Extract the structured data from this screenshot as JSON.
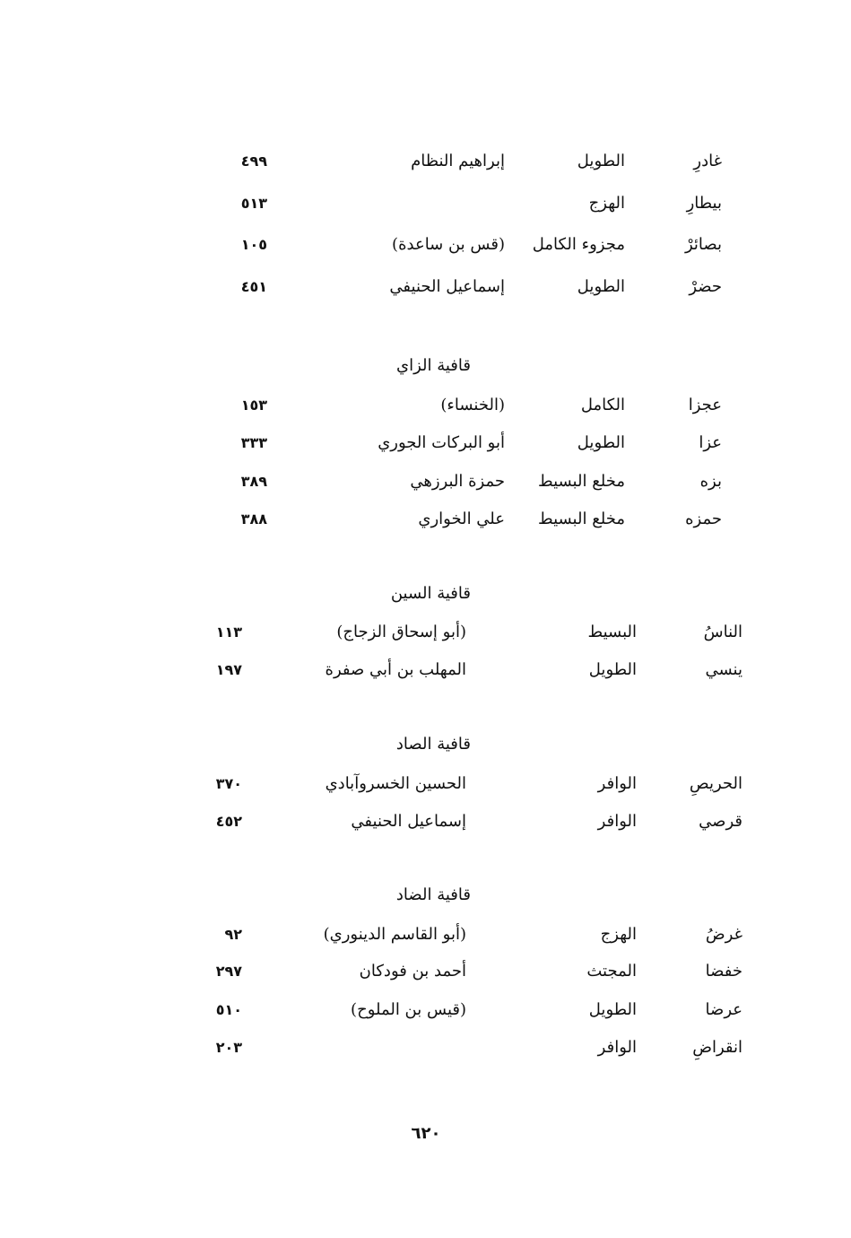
{
  "sections": [
    {
      "heading": "",
      "rows": [
        {
          "rhyme_word": "غادرِ",
          "meter": "الطويل",
          "poet": "إبراهيم النظام",
          "page": "٤٩٩"
        },
        {
          "rhyme_word": "بيطارِ",
          "meter": "الهزج",
          "poet": "",
          "page": "٥١٣"
        },
        {
          "rhyme_word": "بصائرْ",
          "meter": "مجزوء الكامل",
          "poet": "(قس بن ساعدة)",
          "page": "١٠٥"
        },
        {
          "rhyme_word": "حضرْ",
          "meter": "الطويل",
          "poet": "إسماعيل الحنيفي",
          "page": "٤٥١"
        }
      ]
    },
    {
      "heading": "قافية الزاي",
      "rows": [
        {
          "rhyme_word": "عجزا",
          "meter": "الكامل",
          "poet": "(الخنساء)",
          "page": "١٥٣"
        },
        {
          "rhyme_word": "عزا",
          "meter": "الطويل",
          "poet": "أبو البركات الجوري",
          "page": "٣٣٣"
        },
        {
          "rhyme_word": "بزه",
          "meter": "مخلع البسيط",
          "poet": "حمزة البرزهي",
          "page": "٣٨٩"
        },
        {
          "rhyme_word": "حمزه",
          "meter": "مخلع البسيط",
          "poet": "علي الخواري",
          "page": "٣٨٨"
        }
      ]
    },
    {
      "heading": "قافية السين",
      "rows": [
        {
          "rhyme_word": "الناسُ",
          "meter": "البسيط",
          "poet": "(أبو إسحاق الزجاج)",
          "page": "١١٣"
        },
        {
          "rhyme_word": "ينسي",
          "meter": "الطويل",
          "poet": "المهلب بن أبي صفرة",
          "page": "١٩٧"
        }
      ]
    },
    {
      "heading": "قافية الصاد",
      "rows": [
        {
          "rhyme_word": "الحريصِ",
          "meter": "الوافر",
          "poet": "الحسين الخسروآبادي",
          "page": "٣٧٠"
        },
        {
          "rhyme_word": "قرصي",
          "meter": "الوافر",
          "poet": "إسماعيل الحنيفي",
          "page": "٤٥٢"
        }
      ]
    },
    {
      "heading": "قافية الضاد",
      "rows": [
        {
          "rhyme_word": "غرضُ",
          "meter": "الهزج",
          "poet": "(أبو القاسم الدينوري)",
          "page": "٩٢"
        },
        {
          "rhyme_word": "خفضا",
          "meter": "المجتث",
          "poet": "أحمد بن فودكان",
          "page": "٢٩٧"
        },
        {
          "rhyme_word": "عرضا",
          "meter": "الطويل",
          "poet": "(قيس بن الملوح)",
          "page": "٥١٠"
        },
        {
          "rhyme_word": "انقراضِ",
          "meter": "الوافر",
          "poet": "",
          "page": "٢٠٣"
        }
      ]
    }
  ],
  "page_number": "٦٢٠"
}
